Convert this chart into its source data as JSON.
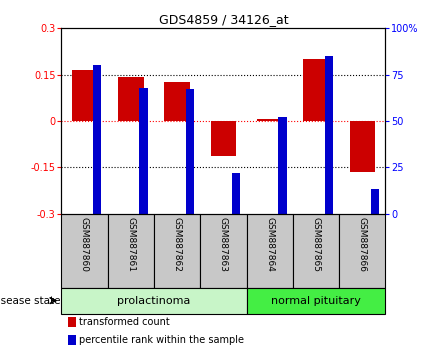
{
  "title": "GDS4859 / 34126_at",
  "samples": [
    "GSM887860",
    "GSM887861",
    "GSM887862",
    "GSM887863",
    "GSM887864",
    "GSM887865",
    "GSM887866"
  ],
  "transformed_count": [
    0.165,
    0.143,
    0.125,
    -0.115,
    0.005,
    0.2,
    -0.165
  ],
  "percentile_rank": [
    80,
    68,
    67,
    22,
    52,
    85,
    13
  ],
  "ylim_left": [
    -0.3,
    0.3
  ],
  "ylim_right": [
    0,
    100
  ],
  "yticks_left": [
    -0.3,
    -0.15,
    0,
    0.15,
    0.3
  ],
  "yticks_right": [
    0,
    25,
    50,
    75,
    100
  ],
  "ytick_labels_left": [
    "-0.3",
    "-0.15",
    "0",
    "0.15",
    "0.3"
  ],
  "ytick_labels_right": [
    "0",
    "25",
    "50",
    "75",
    "100%"
  ],
  "bar_color_red": "#cc0000",
  "bar_color_blue": "#0000cc",
  "red_bar_width": 0.55,
  "blue_bar_width": 0.18,
  "groups": [
    {
      "label": "prolactinoma",
      "samples": [
        0,
        1,
        2,
        3
      ],
      "light_color": "#c8f5c8",
      "dark_color": "#44dd44"
    },
    {
      "label": "normal pituitary",
      "samples": [
        4,
        5,
        6
      ],
      "light_color": "#c8f5c8",
      "dark_color": "#22cc22"
    }
  ],
  "disease_state_label": "disease state",
  "legend_items": [
    {
      "label": "transformed count",
      "color": "#cc0000"
    },
    {
      "label": "percentile rank within the sample",
      "color": "#0000cc"
    }
  ],
  "background_color": "#ffffff",
  "plot_bg_color": "#ffffff",
  "label_area_bg": "#c8c8c8"
}
